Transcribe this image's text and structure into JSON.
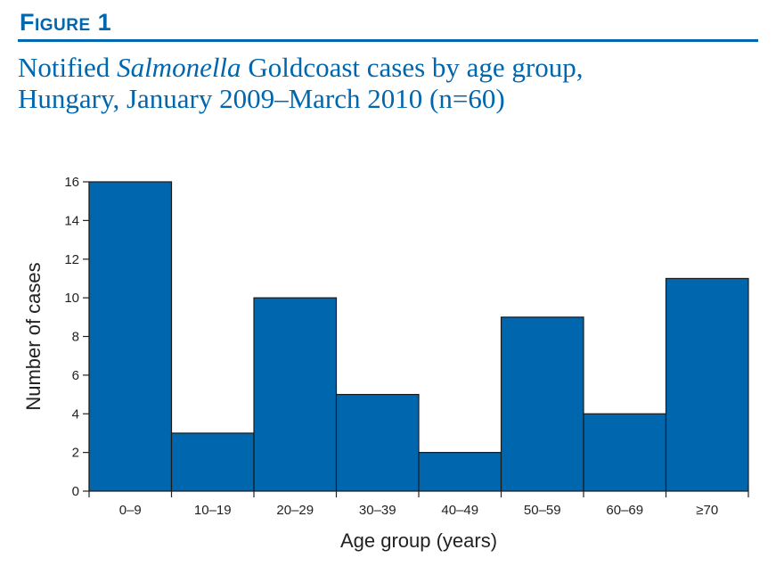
{
  "figure": {
    "label": "Figure 1",
    "title_pre": "Notified ",
    "title_italic": "Salmonella",
    "title_post_line1": " Goldcoast cases by age group,",
    "title_line2": "Hungary, January 2009–March 2010 (n=60)"
  },
  "colors": {
    "accent": "#0066ae",
    "bar_fill": "#0066ae",
    "bar_stroke": "#1a1a1a",
    "axis": "#222222"
  },
  "chart_data": {
    "type": "bar",
    "title": "Notified Salmonella Goldcoast cases by age group, Hungary, January 2009–March 2010 (n=60)",
    "xlabel": "Age group (years)",
    "ylabel": "Number of cases",
    "categories": [
      "0–9",
      "10–19",
      "20–29",
      "30–39",
      "40–49",
      "50–59",
      "60–69",
      "≥70"
    ],
    "values": [
      16,
      3,
      10,
      5,
      2,
      9,
      4,
      11
    ],
    "ylim": [
      0,
      16
    ],
    "yticks": [
      0,
      2,
      4,
      6,
      8,
      10,
      12,
      14,
      16
    ],
    "grid": false,
    "legend": "none"
  }
}
